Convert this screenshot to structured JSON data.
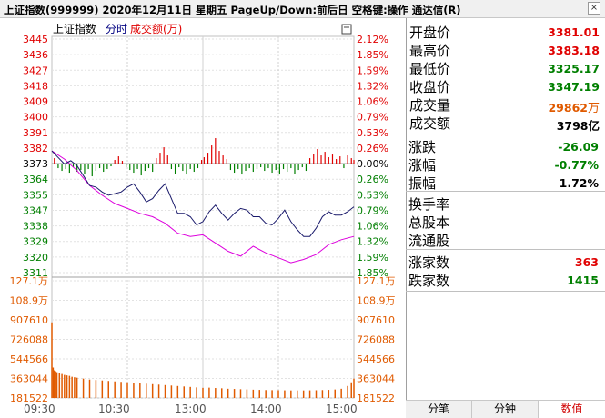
{
  "window": {
    "title": "上证指数(999999)  2020年12月11日  星期五  PageUp/Down:前后日  空格键:操作  通达信(R)",
    "close_label": "×"
  },
  "chart_header": {
    "index_name": "上证指数",
    "mode": "分时",
    "indicator": "成交额(万)"
  },
  "stats": {
    "open_label": "开盘价",
    "open": "3381.01",
    "high_label": "最高价",
    "high": "3383.18",
    "low_label": "最低价",
    "low": "3325.17",
    "close_label": "收盘价",
    "close": "3347.19",
    "volume_label": "成交量",
    "volume_value": "29862",
    "volume_unit": "万",
    "amount_label": "成交额",
    "amount": "3798亿",
    "change_label": "涨跌",
    "change": "-26.09",
    "change_pct_label": "涨幅",
    "change_pct": "-0.77%",
    "amplitude_label": "振幅",
    "amplitude": "1.72%",
    "turnover_label": "换手率",
    "turnover": "",
    "total_shares_label": "总股本",
    "total_shares": "",
    "float_shares_label": "流通股",
    "float_shares": "",
    "advancers_label": "涨家数",
    "advancers": "363",
    "decliners_label": "跌家数",
    "decliners": "1415"
  },
  "tabs": [
    {
      "label": "分笔"
    },
    {
      "label": "分钟"
    },
    {
      "label": "数值"
    }
  ],
  "colors": {
    "up": "#e00000",
    "down": "#007f00",
    "price_line": "#1a1a6b",
    "avg_line": "#dd00dd",
    "volume": "#e05a00",
    "grid": "#c0c0c0"
  },
  "chart_data": [
    {
      "type": "line",
      "title": "上证指数 分时",
      "prev_close": 3373.28,
      "x_ticks": [
        "09:30",
        "10:30",
        "13:00",
        "14:00",
        "15:00"
      ],
      "y_ticks": [
        "3445",
        "3436",
        "3427",
        "3418",
        "3409",
        "3400",
        "3391",
        "3382",
        "3373",
        "3364",
        "3355",
        "3347",
        "3338",
        "3329",
        "3320",
        "3311"
      ],
      "y_pct_ticks": [
        "2.12%",
        "1.85%",
        "1.59%",
        "1.32%",
        "1.06%",
        "0.79%",
        "0.53%",
        "0.26%",
        "0.00%",
        "0.26%",
        "0.53%",
        "0.79%",
        "1.06%",
        "1.32%",
        "1.59%",
        "1.85%"
      ],
      "ylim": [
        3307,
        3449
      ],
      "x_domain": [
        0,
        240
      ],
      "series": [
        {
          "name": "",
          "x": [
            0,
            5,
            10,
            15,
            20,
            25,
            30,
            35,
            40,
            45,
            50,
            55,
            60,
            65,
            70,
            75,
            80,
            85,
            90,
            95,
            100,
            105,
            110,
            115,
            120,
            125,
            130,
            135,
            140,
            145,
            150,
            155,
            160,
            165,
            170,
            175,
            180,
            185,
            190,
            195,
            200,
            205,
            210,
            215,
            220,
            225,
            230,
            235,
            240
          ],
          "values": [
            3381,
            3377,
            3373,
            3375,
            3372,
            3366,
            3360,
            3359,
            3356,
            3354,
            3355,
            3356,
            3359,
            3361,
            3356,
            3350,
            3352,
            3357,
            3361,
            3352,
            3343,
            3343,
            3341,
            3336,
            3338,
            3344,
            3348,
            3343,
            3339,
            3343,
            3346,
            3345,
            3341,
            3341,
            3337,
            3336,
            3340,
            3345,
            3338,
            3333,
            3329,
            3329,
            3334,
            3341,
            3344,
            3342,
            3342,
            3344,
            3347
          ]
        },
        {
          "name": "",
          "x": [
            0,
            10,
            20,
            30,
            40,
            50,
            60,
            70,
            80,
            90,
            100,
            110,
            120,
            130,
            140,
            150,
            160,
            170,
            180,
            190,
            200,
            210,
            220,
            230,
            240
          ],
          "values": [
            3381,
            3376,
            3369,
            3360,
            3354,
            3349,
            3346,
            3343,
            3341,
            3337,
            3331,
            3329,
            3330,
            3325,
            3320,
            3317,
            3323,
            3319,
            3316,
            3313,
            3315,
            3318,
            3324,
            3327,
            3329
          ]
        }
      ]
    },
    {
      "type": "bar",
      "title": "成交额(万)",
      "y_ticks": [
        "127.1万",
        "108.9万",
        "907610",
        "726088",
        "544566",
        "363044",
        "181522"
      ],
      "ylim": [
        0,
        1271000
      ],
      "x_domain": [
        0,
        240
      ],
      "bars": [
        {
          "x": 0,
          "value": 820000
        },
        {
          "x": 1,
          "value": 330000
        },
        {
          "x": 2,
          "value": 300000
        },
        {
          "x": 3,
          "value": 290000
        },
        {
          "x": 4,
          "value": 280000
        },
        {
          "x": 6,
          "value": 270000
        },
        {
          "x": 8,
          "value": 260000
        },
        {
          "x": 10,
          "value": 250000
        },
        {
          "x": 12,
          "value": 245000
        },
        {
          "x": 14,
          "value": 240000
        },
        {
          "x": 16,
          "value": 230000
        },
        {
          "x": 18,
          "value": 225000
        },
        {
          "x": 20,
          "value": 220000
        },
        {
          "x": 25,
          "value": 210000
        },
        {
          "x": 30,
          "value": 200000
        },
        {
          "x": 35,
          "value": 195000
        },
        {
          "x": 40,
          "value": 190000
        },
        {
          "x": 45,
          "value": 185000
        },
        {
          "x": 50,
          "value": 180000
        },
        {
          "x": 55,
          "value": 175000
        },
        {
          "x": 60,
          "value": 170000
        },
        {
          "x": 65,
          "value": 165000
        },
        {
          "x": 70,
          "value": 160000
        },
        {
          "x": 75,
          "value": 155000
        },
        {
          "x": 80,
          "value": 150000
        },
        {
          "x": 85,
          "value": 145000
        },
        {
          "x": 90,
          "value": 140000
        },
        {
          "x": 95,
          "value": 135000
        },
        {
          "x": 100,
          "value": 130000
        },
        {
          "x": 105,
          "value": 125000
        },
        {
          "x": 110,
          "value": 120000
        },
        {
          "x": 115,
          "value": 115000
        },
        {
          "x": 120,
          "value": 110000
        },
        {
          "x": 125,
          "value": 112000
        },
        {
          "x": 130,
          "value": 108000
        },
        {
          "x": 135,
          "value": 105000
        },
        {
          "x": 140,
          "value": 100000
        },
        {
          "x": 145,
          "value": 98000
        },
        {
          "x": 150,
          "value": 95000
        },
        {
          "x": 155,
          "value": 93000
        },
        {
          "x": 160,
          "value": 90000
        },
        {
          "x": 165,
          "value": 88000
        },
        {
          "x": 170,
          "value": 86000
        },
        {
          "x": 175,
          "value": 85000
        },
        {
          "x": 180,
          "value": 84000
        },
        {
          "x": 185,
          "value": 83000
        },
        {
          "x": 190,
          "value": 82000
        },
        {
          "x": 195,
          "value": 82000
        },
        {
          "x": 200,
          "value": 82000
        },
        {
          "x": 205,
          "value": 83000
        },
        {
          "x": 210,
          "value": 84000
        },
        {
          "x": 215,
          "value": 86000
        },
        {
          "x": 220,
          "value": 88000
        },
        {
          "x": 225,
          "value": 92000
        },
        {
          "x": 230,
          "value": 100000
        },
        {
          "x": 235,
          "value": 130000
        },
        {
          "x": 238,
          "value": 170000
        },
        {
          "x": 240,
          "value": 210000
        }
      ]
    },
    {
      "type": "bar",
      "title": "",
      "bars_updown": [
        {
          "x": 2,
          "value": 6
        },
        {
          "x": 5,
          "value": -5
        },
        {
          "x": 8,
          "value": -8
        },
        {
          "x": 11,
          "value": -6
        },
        {
          "x": 14,
          "value": -10
        },
        {
          "x": 17,
          "value": -4
        },
        {
          "x": 20,
          "value": -9
        },
        {
          "x": 23,
          "value": -7
        },
        {
          "x": 26,
          "value": -12
        },
        {
          "x": 29,
          "value": -6
        },
        {
          "x": 32,
          "value": -14
        },
        {
          "x": 35,
          "value": -8
        },
        {
          "x": 38,
          "value": -5
        },
        {
          "x": 41,
          "value": -9
        },
        {
          "x": 44,
          "value": -6
        },
        {
          "x": 47,
          "value": -3
        },
        {
          "x": 50,
          "value": 4
        },
        {
          "x": 53,
          "value": 8
        },
        {
          "x": 56,
          "value": 3
        },
        {
          "x": 59,
          "value": -4
        },
        {
          "x": 62,
          "value": -7
        },
        {
          "x": 65,
          "value": -10
        },
        {
          "x": 68,
          "value": -6
        },
        {
          "x": 71,
          "value": -13
        },
        {
          "x": 74,
          "value": -8
        },
        {
          "x": 77,
          "value": -5
        },
        {
          "x": 80,
          "value": -9
        },
        {
          "x": 83,
          "value": 6
        },
        {
          "x": 86,
          "value": 12
        },
        {
          "x": 89,
          "value": 18
        },
        {
          "x": 92,
          "value": 9
        },
        {
          "x": 95,
          "value": -6
        },
        {
          "x": 98,
          "value": -11
        },
        {
          "x": 101,
          "value": -4
        },
        {
          "x": 104,
          "value": -8
        },
        {
          "x": 107,
          "value": -12
        },
        {
          "x": 110,
          "value": -6
        },
        {
          "x": 113,
          "value": -9
        },
        {
          "x": 116,
          "value": -5
        },
        {
          "x": 119,
          "value": 4
        },
        {
          "x": 121,
          "value": 7
        },
        {
          "x": 124,
          "value": 12
        },
        {
          "x": 127,
          "value": 20
        },
        {
          "x": 130,
          "value": 28
        },
        {
          "x": 133,
          "value": 14
        },
        {
          "x": 136,
          "value": 9
        },
        {
          "x": 139,
          "value": 5
        },
        {
          "x": 142,
          "value": -7
        },
        {
          "x": 145,
          "value": -10
        },
        {
          "x": 148,
          "value": -6
        },
        {
          "x": 151,
          "value": -12
        },
        {
          "x": 154,
          "value": -8
        },
        {
          "x": 157,
          "value": -5
        },
        {
          "x": 160,
          "value": -9
        },
        {
          "x": 163,
          "value": -6
        },
        {
          "x": 166,
          "value": -4
        },
        {
          "x": 169,
          "value": -8
        },
        {
          "x": 172,
          "value": -5
        },
        {
          "x": 175,
          "value": -10
        },
        {
          "x": 178,
          "value": -7
        },
        {
          "x": 181,
          "value": -12
        },
        {
          "x": 184,
          "value": -6
        },
        {
          "x": 187,
          "value": -9
        },
        {
          "x": 190,
          "value": -5
        },
        {
          "x": 193,
          "value": -11
        },
        {
          "x": 196,
          "value": -7
        },
        {
          "x": 199,
          "value": -4
        },
        {
          "x": 202,
          "value": -8
        },
        {
          "x": 205,
          "value": 6
        },
        {
          "x": 208,
          "value": 11
        },
        {
          "x": 211,
          "value": 16
        },
        {
          "x": 214,
          "value": 9
        },
        {
          "x": 217,
          "value": 13
        },
        {
          "x": 220,
          "value": 7
        },
        {
          "x": 223,
          "value": 10
        },
        {
          "x": 226,
          "value": 5
        },
        {
          "x": 229,
          "value": 8
        },
        {
          "x": 232,
          "value": -5
        },
        {
          "x": 235,
          "value": 9
        },
        {
          "x": 238,
          "value": 6
        },
        {
          "x": 240,
          "value": 4
        }
      ]
    }
  ]
}
